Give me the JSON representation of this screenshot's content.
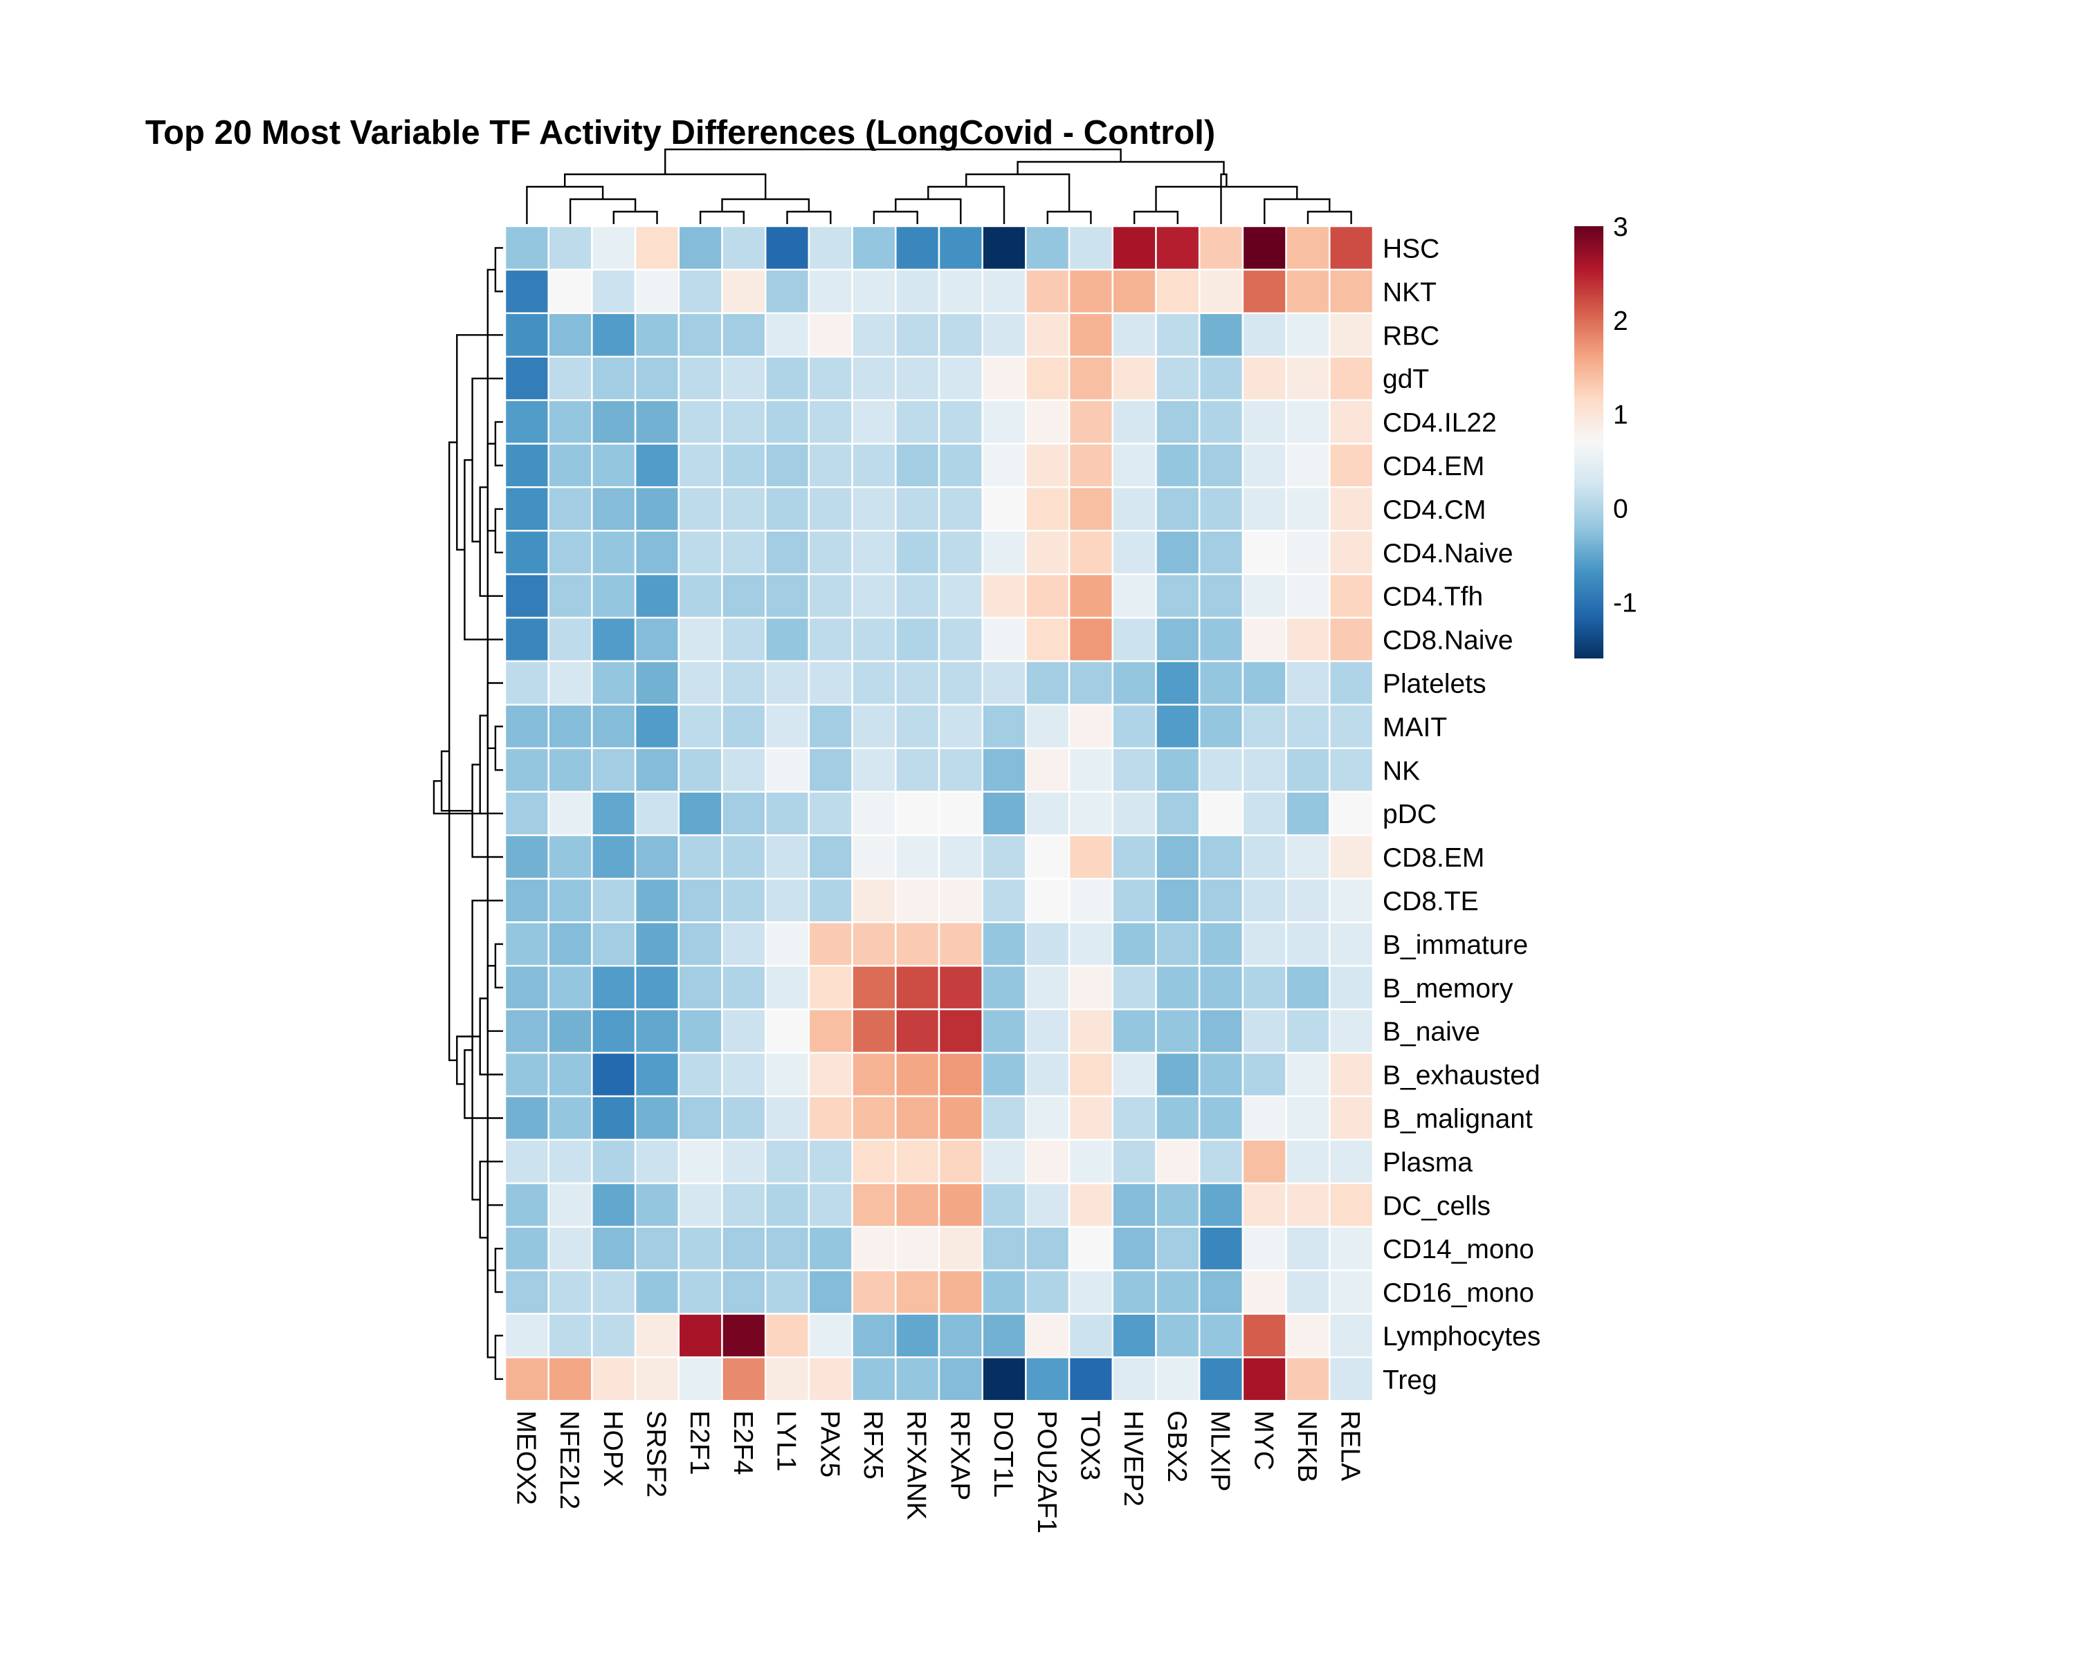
{
  "chart_data": {
    "type": "heatmap",
    "title": "Top 20 Most Variable TF Activity Differences (LongCovid - Control)",
    "columns": [
      "MEOX2",
      "NFE2L2",
      "HOPX",
      "SRSF2",
      "E2F1",
      "E2F4",
      "LYL1",
      "PAX5",
      "RFX5",
      "RFXANK",
      "RFXAP",
      "DOT1L",
      "POU2AF1",
      "TOX3",
      "HIVEP2",
      "GBX2",
      "MLXIP",
      "MYC",
      "NFKB",
      "RELA"
    ],
    "rows": [
      "HSC",
      "NKT",
      "RBC",
      "gdT",
      "CD4.IL22",
      "CD4.EM",
      "CD4.CM",
      "CD4.Naive",
      "CD4.Tfh",
      "CD8.Naive",
      "Platelets",
      "MAIT",
      "NK",
      "pDC",
      "CD8.EM",
      "CD8.TE",
      "B_immature",
      "B_memory",
      "B_naive",
      "B_exhausted",
      "B_malignant",
      "Plasma",
      "DC_cells",
      "CD14_mono",
      "CD16_mono",
      "Lymphocytes",
      "Treg"
    ],
    "values": [
      [
        -0.2,
        0.1,
        0.5,
        1.1,
        -0.3,
        0.1,
        -1.1,
        0.2,
        -0.2,
        -0.8,
        -0.7,
        -1.6,
        -0.2,
        0.2,
        2.6,
        2.5,
        1.3,
        3.0,
        1.4,
        2.2
      ],
      [
        -0.9,
        0.7,
        0.2,
        0.6,
        0.1,
        0.9,
        -0.1,
        0.4,
        0.4,
        0.3,
        0.4,
        0.4,
        1.3,
        1.5,
        1.5,
        1.1,
        0.9,
        2.0,
        1.4,
        1.4
      ],
      [
        -0.7,
        -0.3,
        -0.6,
        -0.2,
        -0.1,
        -0.1,
        0.4,
        0.8,
        0.2,
        0.1,
        0.1,
        0.3,
        1.0,
        1.5,
        0.3,
        0.1,
        -0.4,
        0.3,
        0.5,
        0.9
      ],
      [
        -0.9,
        0.1,
        -0.1,
        -0.1,
        0.1,
        0.2,
        0.0,
        0.1,
        0.2,
        0.2,
        0.3,
        0.8,
        1.1,
        1.4,
        1.0,
        0.1,
        0.0,
        1.0,
        0.9,
        1.2
      ],
      [
        -0.6,
        -0.2,
        -0.4,
        -0.4,
        0.1,
        0.1,
        0.0,
        0.1,
        0.3,
        0.1,
        0.1,
        0.5,
        0.8,
        1.3,
        0.3,
        -0.1,
        0.0,
        0.4,
        0.5,
        1.0
      ],
      [
        -0.7,
        -0.2,
        -0.2,
        -0.6,
        0.1,
        0.0,
        -0.1,
        0.1,
        0.1,
        -0.1,
        0.0,
        0.6,
        1.0,
        1.3,
        0.4,
        -0.2,
        -0.1,
        0.4,
        0.6,
        1.2
      ],
      [
        -0.7,
        -0.1,
        -0.3,
        -0.4,
        0.1,
        0.1,
        0.0,
        0.1,
        0.2,
        0.1,
        0.1,
        0.7,
        1.1,
        1.4,
        0.3,
        -0.1,
        0.0,
        0.4,
        0.5,
        1.0
      ],
      [
        -0.7,
        -0.1,
        -0.2,
        -0.3,
        0.1,
        0.1,
        -0.1,
        0.1,
        0.2,
        0.0,
        0.1,
        0.5,
        1.0,
        1.2,
        0.3,
        -0.3,
        -0.1,
        0.7,
        0.6,
        1.0
      ],
      [
        -0.9,
        -0.1,
        -0.2,
        -0.6,
        0.0,
        -0.1,
        -0.1,
        0.1,
        0.2,
        0.1,
        0.2,
        1.0,
        1.2,
        1.6,
        0.5,
        -0.1,
        -0.1,
        0.5,
        0.6,
        1.2
      ],
      [
        -0.8,
        0.1,
        -0.6,
        -0.3,
        0.3,
        0.1,
        -0.2,
        0.1,
        0.1,
        0.0,
        0.1,
        0.6,
        1.1,
        1.7,
        0.2,
        -0.3,
        -0.2,
        0.8,
        1.0,
        1.3
      ],
      [
        0.1,
        0.3,
        -0.2,
        -0.4,
        0.2,
        0.1,
        0.2,
        0.2,
        0.1,
        0.1,
        0.1,
        0.2,
        -0.1,
        -0.1,
        -0.2,
        -0.6,
        -0.2,
        -0.2,
        0.2,
        0.0
      ],
      [
        -0.3,
        -0.3,
        -0.3,
        -0.6,
        0.1,
        0.0,
        0.3,
        -0.1,
        0.2,
        0.1,
        0.2,
        -0.1,
        0.4,
        0.8,
        0.0,
        -0.6,
        -0.2,
        0.1,
        0.1,
        0.1
      ],
      [
        -0.2,
        -0.2,
        -0.1,
        -0.3,
        0.0,
        0.2,
        0.6,
        -0.1,
        0.3,
        0.1,
        0.1,
        -0.3,
        0.8,
        0.5,
        0.1,
        -0.2,
        0.2,
        0.2,
        0.0,
        0.1
      ],
      [
        -0.1,
        0.5,
        -0.5,
        0.2,
        -0.5,
        -0.1,
        0.0,
        0.1,
        0.6,
        0.7,
        0.7,
        -0.4,
        0.4,
        0.5,
        0.3,
        -0.1,
        0.7,
        0.2,
        -0.2,
        0.7
      ],
      [
        -0.4,
        -0.2,
        -0.5,
        -0.3,
        0.0,
        0.0,
        0.2,
        -0.1,
        0.6,
        0.5,
        0.4,
        0.1,
        0.7,
        1.2,
        0.0,
        -0.3,
        -0.1,
        0.2,
        0.4,
        0.9
      ],
      [
        -0.3,
        -0.2,
        0.0,
        -0.4,
        -0.1,
        0.0,
        0.2,
        0.0,
        0.9,
        0.8,
        0.8,
        0.1,
        0.7,
        0.6,
        0.0,
        -0.3,
        -0.1,
        0.2,
        0.3,
        0.5
      ],
      [
        -0.2,
        -0.3,
        -0.1,
        -0.5,
        -0.1,
        0.2,
        0.6,
        1.3,
        1.3,
        1.3,
        1.3,
        -0.2,
        0.2,
        0.4,
        -0.2,
        -0.1,
        -0.2,
        0.3,
        0.3,
        0.4
      ],
      [
        -0.3,
        -0.2,
        -0.6,
        -0.6,
        -0.1,
        0.0,
        0.4,
        1.1,
        2.0,
        2.2,
        2.3,
        -0.2,
        0.4,
        0.8,
        0.1,
        -0.2,
        -0.2,
        0.0,
        -0.2,
        0.3
      ],
      [
        -0.3,
        -0.4,
        -0.6,
        -0.5,
        -0.2,
        0.2,
        0.7,
        1.4,
        2.0,
        2.3,
        2.4,
        -0.2,
        0.3,
        1.0,
        -0.2,
        -0.2,
        -0.3,
        0.2,
        0.1,
        0.4
      ],
      [
        -0.2,
        -0.2,
        -1.1,
        -0.6,
        0.1,
        0.2,
        0.5,
        1.0,
        1.5,
        1.6,
        1.7,
        -0.2,
        0.3,
        1.1,
        0.4,
        -0.4,
        -0.2,
        0.0,
        0.5,
        1.0
      ],
      [
        -0.4,
        -0.2,
        -0.8,
        -0.4,
        -0.1,
        0.0,
        0.3,
        1.2,
        1.4,
        1.5,
        1.6,
        0.1,
        0.5,
        1.0,
        0.1,
        -0.2,
        -0.2,
        0.6,
        0.5,
        1.0
      ],
      [
        0.2,
        0.2,
        0.0,
        0.2,
        0.5,
        0.3,
        0.1,
        0.1,
        1.1,
        1.1,
        1.2,
        0.4,
        0.8,
        0.5,
        0.1,
        0.8,
        0.1,
        1.4,
        0.4,
        0.4
      ],
      [
        -0.2,
        0.4,
        -0.5,
        -0.2,
        0.3,
        0.1,
        0.0,
        0.1,
        1.4,
        1.5,
        1.6,
        0.0,
        0.3,
        1.0,
        -0.3,
        -0.2,
        -0.5,
        1.0,
        1.0,
        1.1
      ],
      [
        -0.2,
        0.3,
        -0.3,
        -0.1,
        0.0,
        -0.1,
        -0.1,
        -0.2,
        0.8,
        0.8,
        0.9,
        -0.1,
        -0.1,
        0.7,
        -0.3,
        -0.1,
        -0.8,
        0.6,
        0.3,
        0.5
      ],
      [
        -0.1,
        0.1,
        0.1,
        -0.2,
        0.0,
        -0.1,
        0.0,
        -0.3,
        1.3,
        1.4,
        1.5,
        -0.2,
        0.0,
        0.4,
        -0.2,
        -0.2,
        -0.3,
        0.8,
        0.3,
        0.5
      ],
      [
        0.4,
        0.1,
        0.1,
        0.9,
        2.6,
        2.9,
        1.2,
        0.5,
        -0.3,
        -0.5,
        -0.3,
        -0.4,
        0.8,
        0.2,
        -0.6,
        -0.2,
        -0.2,
        2.1,
        0.8,
        0.4
      ],
      [
        1.5,
        1.6,
        1.0,
        0.9,
        0.5,
        1.8,
        0.9,
        1.0,
        -0.2,
        -0.2,
        -0.3,
        -1.6,
        -0.6,
        -1.1,
        0.4,
        0.5,
        -0.8,
        2.6,
        1.3,
        0.3
      ]
    ],
    "colorbar": {
      "min": -1.6,
      "max": 3.0,
      "ticks": [
        -1,
        0,
        1,
        2,
        3
      ],
      "tick_labels": [
        "-1",
        "0",
        "1",
        "2",
        "3"
      ],
      "colors": [
        "#053061",
        "#2166AC",
        "#4393C3",
        "#92C5DE",
        "#D1E5F0",
        "#F7F7F7",
        "#FDDBC7",
        "#F4A582",
        "#D6604D",
        "#B2182B",
        "#67001F"
      ]
    },
    "row_dendrogram": {
      "merges": [
        [
          0,
          1
        ],
        [
          23,
          24
        ],
        [
          22,
          28
        ],
        [
          21,
          29
        ],
        [
          15,
          30
        ],
        [
          20,
          31
        ],
        [
          6,
          7
        ],
        [
          4,
          5
        ],
        [
          33,
          34
        ],
        [
          8,
          35
        ],
        [
          3,
          36
        ],
        [
          9,
          37
        ],
        [
          2,
          38
        ],
        [
          16,
          17
        ],
        [
          40,
          18
        ],
        [
          41,
          19
        ],
        [
          42,
          32
        ],
        [
          43,
          39
        ],
        [
          11,
          12
        ],
        [
          10,
          45
        ],
        [
          13,
          46
        ],
        [
          14,
          47
        ],
        [
          48,
          44
        ],
        [
          25,
          26
        ],
        [
          27,
          50
        ],
        [
          49,
          51
        ]
      ]
    },
    "col_dendrogram": {
      "merges": [
        [
          2,
          3
        ],
        [
          1,
          20
        ],
        [
          0,
          21
        ],
        [
          4,
          5
        ],
        [
          6,
          7
        ],
        [
          23,
          24
        ],
        [
          22,
          25
        ],
        [
          8,
          9
        ],
        [
          27,
          10
        ],
        [
          28,
          11
        ],
        [
          12,
          13
        ],
        [
          29,
          30
        ],
        [
          14,
          15
        ],
        [
          18,
          19
        ],
        [
          17,
          33
        ],
        [
          32,
          34
        ],
        [
          16,
          35
        ],
        [
          31,
          36
        ],
        [
          26,
          37
        ]
      ]
    },
    "grid": false,
    "legend_placement": "right"
  }
}
